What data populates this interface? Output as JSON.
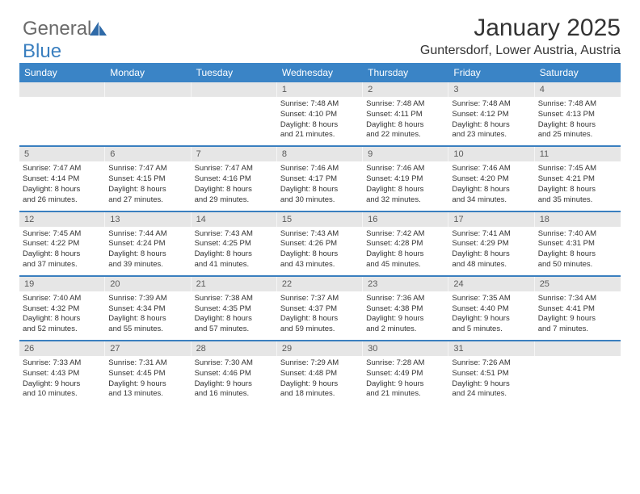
{
  "logo": {
    "text1": "General",
    "text2": "Blue"
  },
  "title": "January 2025",
  "location": "Guntersdorf, Lower Austria, Austria",
  "days": [
    "Sunday",
    "Monday",
    "Tuesday",
    "Wednesday",
    "Thursday",
    "Friday",
    "Saturday"
  ],
  "styling": {
    "page_bg": "#ffffff",
    "header_band_bg": "#3a84c6",
    "header_band_text": "#ffffff",
    "daynum_bg": "#e6e6e6",
    "daynum_text": "#5a5a5a",
    "body_text": "#333333",
    "week_divider": "#3a7fbf",
    "logo_grey": "#6a6a6a",
    "logo_blue": "#3a7fbf",
    "title_fontsize": 30,
    "location_fontsize": 16,
    "dayhead_fontsize": 12,
    "daynum_fontsize": 11,
    "celltext_fontsize": 9.5
  },
  "weeks": [
    [
      {
        "n": "",
        "lines": []
      },
      {
        "n": "",
        "lines": []
      },
      {
        "n": "",
        "lines": []
      },
      {
        "n": "1",
        "lines": [
          "Sunrise: 7:48 AM",
          "Sunset: 4:10 PM",
          "Daylight: 8 hours",
          "and 21 minutes."
        ]
      },
      {
        "n": "2",
        "lines": [
          "Sunrise: 7:48 AM",
          "Sunset: 4:11 PM",
          "Daylight: 8 hours",
          "and 22 minutes."
        ]
      },
      {
        "n": "3",
        "lines": [
          "Sunrise: 7:48 AM",
          "Sunset: 4:12 PM",
          "Daylight: 8 hours",
          "and 23 minutes."
        ]
      },
      {
        "n": "4",
        "lines": [
          "Sunrise: 7:48 AM",
          "Sunset: 4:13 PM",
          "Daylight: 8 hours",
          "and 25 minutes."
        ]
      }
    ],
    [
      {
        "n": "5",
        "lines": [
          "Sunrise: 7:47 AM",
          "Sunset: 4:14 PM",
          "Daylight: 8 hours",
          "and 26 minutes."
        ]
      },
      {
        "n": "6",
        "lines": [
          "Sunrise: 7:47 AM",
          "Sunset: 4:15 PM",
          "Daylight: 8 hours",
          "and 27 minutes."
        ]
      },
      {
        "n": "7",
        "lines": [
          "Sunrise: 7:47 AM",
          "Sunset: 4:16 PM",
          "Daylight: 8 hours",
          "and 29 minutes."
        ]
      },
      {
        "n": "8",
        "lines": [
          "Sunrise: 7:46 AM",
          "Sunset: 4:17 PM",
          "Daylight: 8 hours",
          "and 30 minutes."
        ]
      },
      {
        "n": "9",
        "lines": [
          "Sunrise: 7:46 AM",
          "Sunset: 4:19 PM",
          "Daylight: 8 hours",
          "and 32 minutes."
        ]
      },
      {
        "n": "10",
        "lines": [
          "Sunrise: 7:46 AM",
          "Sunset: 4:20 PM",
          "Daylight: 8 hours",
          "and 34 minutes."
        ]
      },
      {
        "n": "11",
        "lines": [
          "Sunrise: 7:45 AM",
          "Sunset: 4:21 PM",
          "Daylight: 8 hours",
          "and 35 minutes."
        ]
      }
    ],
    [
      {
        "n": "12",
        "lines": [
          "Sunrise: 7:45 AM",
          "Sunset: 4:22 PM",
          "Daylight: 8 hours",
          "and 37 minutes."
        ]
      },
      {
        "n": "13",
        "lines": [
          "Sunrise: 7:44 AM",
          "Sunset: 4:24 PM",
          "Daylight: 8 hours",
          "and 39 minutes."
        ]
      },
      {
        "n": "14",
        "lines": [
          "Sunrise: 7:43 AM",
          "Sunset: 4:25 PM",
          "Daylight: 8 hours",
          "and 41 minutes."
        ]
      },
      {
        "n": "15",
        "lines": [
          "Sunrise: 7:43 AM",
          "Sunset: 4:26 PM",
          "Daylight: 8 hours",
          "and 43 minutes."
        ]
      },
      {
        "n": "16",
        "lines": [
          "Sunrise: 7:42 AM",
          "Sunset: 4:28 PM",
          "Daylight: 8 hours",
          "and 45 minutes."
        ]
      },
      {
        "n": "17",
        "lines": [
          "Sunrise: 7:41 AM",
          "Sunset: 4:29 PM",
          "Daylight: 8 hours",
          "and 48 minutes."
        ]
      },
      {
        "n": "18",
        "lines": [
          "Sunrise: 7:40 AM",
          "Sunset: 4:31 PM",
          "Daylight: 8 hours",
          "and 50 minutes."
        ]
      }
    ],
    [
      {
        "n": "19",
        "lines": [
          "Sunrise: 7:40 AM",
          "Sunset: 4:32 PM",
          "Daylight: 8 hours",
          "and 52 minutes."
        ]
      },
      {
        "n": "20",
        "lines": [
          "Sunrise: 7:39 AM",
          "Sunset: 4:34 PM",
          "Daylight: 8 hours",
          "and 55 minutes."
        ]
      },
      {
        "n": "21",
        "lines": [
          "Sunrise: 7:38 AM",
          "Sunset: 4:35 PM",
          "Daylight: 8 hours",
          "and 57 minutes."
        ]
      },
      {
        "n": "22",
        "lines": [
          "Sunrise: 7:37 AM",
          "Sunset: 4:37 PM",
          "Daylight: 8 hours",
          "and 59 minutes."
        ]
      },
      {
        "n": "23",
        "lines": [
          "Sunrise: 7:36 AM",
          "Sunset: 4:38 PM",
          "Daylight: 9 hours",
          "and 2 minutes."
        ]
      },
      {
        "n": "24",
        "lines": [
          "Sunrise: 7:35 AM",
          "Sunset: 4:40 PM",
          "Daylight: 9 hours",
          "and 5 minutes."
        ]
      },
      {
        "n": "25",
        "lines": [
          "Sunrise: 7:34 AM",
          "Sunset: 4:41 PM",
          "Daylight: 9 hours",
          "and 7 minutes."
        ]
      }
    ],
    [
      {
        "n": "26",
        "lines": [
          "Sunrise: 7:33 AM",
          "Sunset: 4:43 PM",
          "Daylight: 9 hours",
          "and 10 minutes."
        ]
      },
      {
        "n": "27",
        "lines": [
          "Sunrise: 7:31 AM",
          "Sunset: 4:45 PM",
          "Daylight: 9 hours",
          "and 13 minutes."
        ]
      },
      {
        "n": "28",
        "lines": [
          "Sunrise: 7:30 AM",
          "Sunset: 4:46 PM",
          "Daylight: 9 hours",
          "and 16 minutes."
        ]
      },
      {
        "n": "29",
        "lines": [
          "Sunrise: 7:29 AM",
          "Sunset: 4:48 PM",
          "Daylight: 9 hours",
          "and 18 minutes."
        ]
      },
      {
        "n": "30",
        "lines": [
          "Sunrise: 7:28 AM",
          "Sunset: 4:49 PM",
          "Daylight: 9 hours",
          "and 21 minutes."
        ]
      },
      {
        "n": "31",
        "lines": [
          "Sunrise: 7:26 AM",
          "Sunset: 4:51 PM",
          "Daylight: 9 hours",
          "and 24 minutes."
        ]
      },
      {
        "n": "",
        "lines": []
      }
    ]
  ]
}
